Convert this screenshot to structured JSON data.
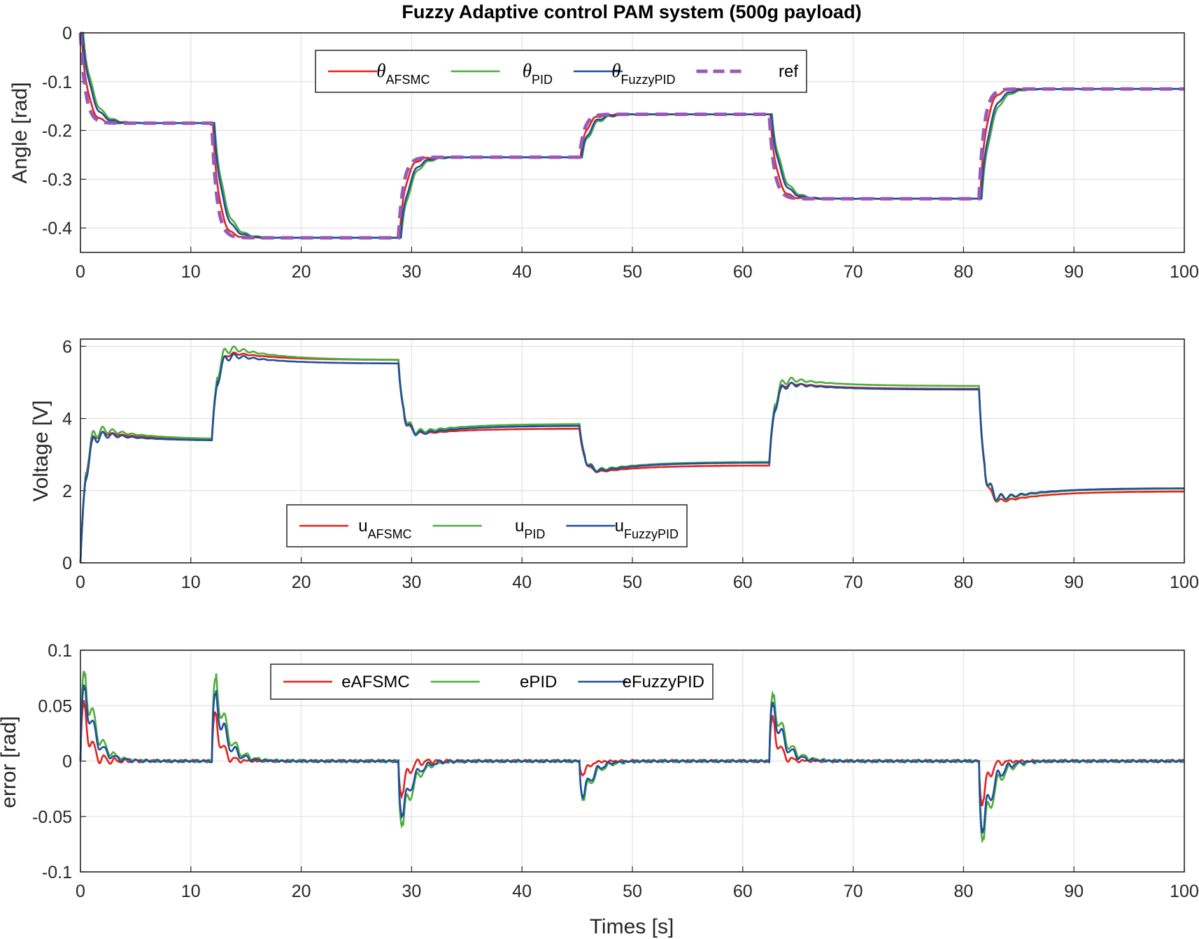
{
  "title": "Fuzzy Adaptive control PAM system (500g payload)",
  "colors": {
    "afsmc": "#e2231a",
    "pid": "#4dac3c",
    "fuzzypid": "#1f4e9c",
    "ref": "#9b59b6",
    "axis": "#262626",
    "grid": "#dcdcdc"
  },
  "chart_data": [
    {
      "type": "line",
      "title": "Fuzzy Adaptive control PAM system (500g payload)",
      "xlabel": "",
      "ylabel": "Angle [rad]",
      "xlim": [
        0,
        100
      ],
      "ylim": [
        -0.45,
        0
      ],
      "xticks": [
        "0",
        "10",
        "20",
        "30",
        "40",
        "50",
        "60",
        "70",
        "80",
        "90",
        "100"
      ],
      "yticks": [
        "0",
        "-0.1",
        "-0.2",
        "-0.3",
        "-0.4"
      ],
      "ytick_values": [
        0,
        -0.1,
        -0.2,
        -0.3,
        -0.4
      ],
      "grid": true,
      "legend_position": "top-center",
      "steps": {
        "times": [
          0,
          11.9,
          28.8,
          45.2,
          62.4,
          81.4
        ],
        "levels": [
          -0.185,
          -0.42,
          -0.255,
          -0.167,
          -0.34,
          -0.115
        ],
        "start": 0
      },
      "series": [
        {
          "key": "afsmc",
          "name": "θAFSMC",
          "symbol": "θ",
          "sub": "AFSMC",
          "tau": 0.55,
          "delay": 0.1,
          "osc": 0.006
        },
        {
          "key": "pid",
          "name": "θPID",
          "symbol": "θ",
          "sub": "PID",
          "tau": 0.85,
          "delay": 0.25,
          "osc": 0.009
        },
        {
          "key": "fuzzypid",
          "name": "θFuzzyPID",
          "symbol": "θ",
          "sub": "FuzzyPID",
          "tau": 0.75,
          "delay": 0.2,
          "osc": 0.008
        },
        {
          "key": "ref",
          "name": "ref",
          "symbol": "",
          "sub": "",
          "tau": 0.45,
          "delay": 0.0,
          "osc": 0,
          "dashed": true
        }
      ]
    },
    {
      "type": "line",
      "xlabel": "",
      "ylabel": "Voltage [V]",
      "xlim": [
        0,
        100
      ],
      "ylim": [
        0,
        6.2
      ],
      "xticks": [
        "0",
        "10",
        "20",
        "30",
        "40",
        "50",
        "60",
        "70",
        "80",
        "90",
        "100"
      ],
      "yticks": [
        "0",
        "2",
        "4",
        "6"
      ],
      "ytick_values": [
        0,
        2,
        4,
        6
      ],
      "grid": true,
      "legend_position": "bottom-center",
      "segments": [
        {
          "t0": 0,
          "t1": 11.9,
          "start": 0,
          "peak": {
            "afsmc": 3.65,
            "pid": 3.75,
            "fuzzypid": 3.6
          },
          "end": {
            "afsmc": 3.4,
            "pid": 3.42,
            "fuzzypid": 3.38
          }
        },
        {
          "t0": 11.9,
          "t1": 28.8,
          "peak": {
            "afsmc": 5.85,
            "pid": 6.0,
            "fuzzypid": 5.78
          },
          "end": {
            "afsmc": 5.62,
            "pid": 5.62,
            "fuzzypid": 5.52
          }
        },
        {
          "t0": 28.8,
          "t1": 45.2,
          "peak": {
            "afsmc": 3.55,
            "pid": 3.6,
            "fuzzypid": 3.55
          },
          "end": {
            "afsmc": 3.72,
            "pid": 3.85,
            "fuzzypid": 3.8
          }
        },
        {
          "t0": 45.2,
          "t1": 62.4,
          "peak": {
            "afsmc": 2.5,
            "pid": 2.55,
            "fuzzypid": 2.52
          },
          "end": {
            "afsmc": 2.7,
            "pid": 2.8,
            "fuzzypid": 2.78
          }
        },
        {
          "t0": 62.4,
          "t1": 81.4,
          "peak": {
            "afsmc": 5.0,
            "pid": 5.12,
            "fuzzypid": 4.98
          },
          "end": {
            "afsmc": 4.82,
            "pid": 4.9,
            "fuzzypid": 4.8
          }
        },
        {
          "t0": 81.4,
          "t1": 100,
          "peak": {
            "afsmc": 1.65,
            "pid": 1.72,
            "fuzzypid": 1.75
          },
          "end": {
            "afsmc": 1.98,
            "pid": 2.06,
            "fuzzypid": 2.07
          }
        }
      ],
      "series": [
        {
          "key": "afsmc",
          "name": "uAFSMC",
          "symbol": "u",
          "sub": "AFSMC"
        },
        {
          "key": "pid",
          "name": "uPID",
          "symbol": "u",
          "sub": "PID"
        },
        {
          "key": "fuzzypid",
          "name": "uFuzzyPID",
          "symbol": "u",
          "sub": "FuzzyPID"
        }
      ]
    },
    {
      "type": "line",
      "xlabel": "Times [s]",
      "ylabel": "error [rad]",
      "xlim": [
        0,
        100
      ],
      "ylim": [
        -0.1,
        0.1
      ],
      "xticks": [
        "0",
        "10",
        "20",
        "30",
        "40",
        "50",
        "60",
        "70",
        "80",
        "90",
        "100"
      ],
      "yticks": [
        "0.1",
        "0.05",
        "0",
        "-0.05",
        "-0.1"
      ],
      "ytick_values": [
        0.1,
        0.05,
        0,
        -0.05,
        -0.1
      ],
      "grid": true,
      "legend_position": "top-center",
      "events": [
        {
          "t": 0,
          "peak": {
            "afsmc": 0.06,
            "pid": 0.088,
            "fuzzypid": 0.075
          }
        },
        {
          "t": 11.9,
          "peak": {
            "afsmc": 0.048,
            "pid": 0.081,
            "fuzzypid": 0.066
          }
        },
        {
          "t": 28.8,
          "peak": {
            "afsmc": -0.035,
            "pid": -0.064,
            "fuzzypid": -0.055
          }
        },
        {
          "t": 45.2,
          "peak": {
            "afsmc": -0.015,
            "pid": -0.038,
            "fuzzypid": -0.035
          }
        },
        {
          "t": 62.4,
          "peak": {
            "afsmc": 0.045,
            "pid": 0.066,
            "fuzzypid": 0.057
          }
        },
        {
          "t": 81.4,
          "peak": {
            "afsmc": -0.045,
            "pid": -0.079,
            "fuzzypid": -0.07
          }
        }
      ],
      "series": [
        {
          "key": "afsmc",
          "name": "eAFSMC"
        },
        {
          "key": "pid",
          "name": "ePID"
        },
        {
          "key": "fuzzypid",
          "name": "eFuzzyPID"
        }
      ]
    }
  ]
}
